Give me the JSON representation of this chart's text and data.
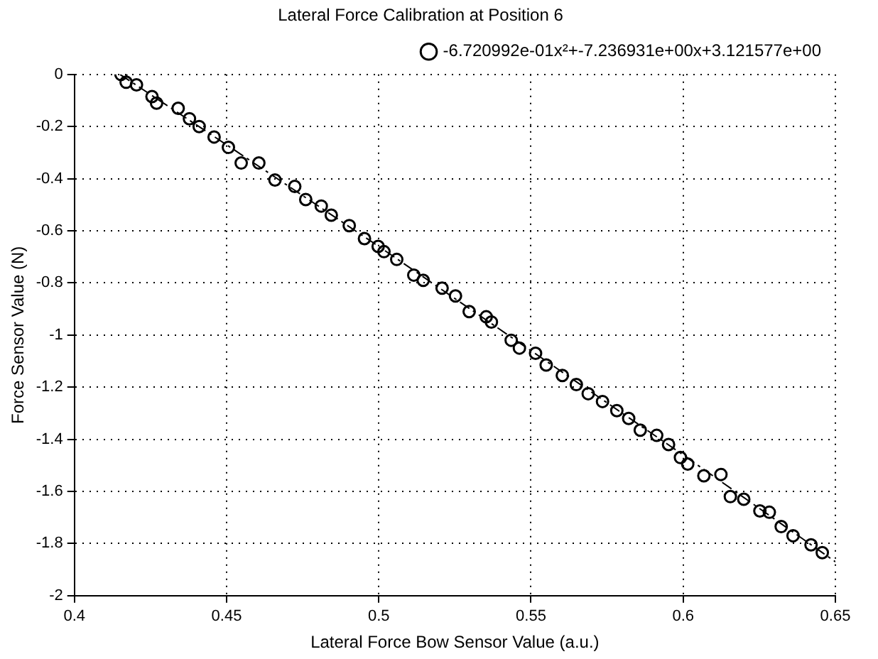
{
  "chart_data": {
    "type": "scatter",
    "title": "Lateral Force Calibration at Position 6",
    "xlabel": "Lateral Force Bow Sensor Value (a.u.)",
    "ylabel": "Force Sensor Value (N)",
    "xlim": [
      0.4,
      0.65
    ],
    "xticks": [
      0.4,
      0.45,
      0.5,
      0.55,
      0.6,
      0.65
    ],
    "ylim": [
      -2,
      0
    ],
    "yticks": [
      -2,
      -1.8,
      -1.6,
      -1.4,
      -1.2,
      -1,
      -0.8,
      -0.6,
      -0.4,
      -0.2,
      0
    ],
    "grid": true,
    "legend": "top right",
    "series": [
      {
        "name": "-6.720992e-01x²+-7.236931e+00x+3.121577e+00",
        "marker": "circle",
        "color": "#000000",
        "x": [
          0.4153,
          0.417,
          0.4204,
          0.4255,
          0.427,
          0.4341,
          0.4378,
          0.441,
          0.4459,
          0.4506,
          0.4548,
          0.4606,
          0.4659,
          0.4724,
          0.476,
          0.4811,
          0.4844,
          0.4903,
          0.4953,
          0.4998,
          0.5017,
          0.5059,
          0.5115,
          0.5146,
          0.5208,
          0.5252,
          0.5297,
          0.5353,
          0.537,
          0.5435,
          0.5462,
          0.5515,
          0.555,
          0.5603,
          0.5649,
          0.5688,
          0.5735,
          0.5782,
          0.5821,
          0.5859,
          0.5913,
          0.5952,
          0.5991,
          0.6015,
          0.6068,
          0.6124,
          0.6155,
          0.6199,
          0.6252,
          0.6283,
          0.6322,
          0.6361,
          0.642,
          0.6457
        ],
        "values": [
          0,
          -0.03,
          -0.04,
          -0.085,
          -0.11,
          -0.13,
          -0.17,
          -0.2,
          -0.24,
          -0.28,
          -0.34,
          -0.34,
          -0.405,
          -0.43,
          -0.48,
          -0.505,
          -0.54,
          -0.58,
          -0.63,
          -0.66,
          -0.68,
          -0.71,
          -0.77,
          -0.79,
          -0.82,
          -0.85,
          -0.91,
          -0.93,
          -0.95,
          -1.02,
          -1.05,
          -1.07,
          -1.115,
          -1.155,
          -1.19,
          -1.225,
          -1.255,
          -1.29,
          -1.32,
          -1.365,
          -1.385,
          -1.42,
          -1.47,
          -1.495,
          -1.54,
          -1.535,
          -1.62,
          -1.63,
          -1.675,
          -1.68,
          -1.735,
          -1.77,
          -1.805,
          -1.835
        ]
      },
      {
        "type": "line",
        "marker": "none",
        "line_style": "dashed",
        "color": "#000000",
        "x": [
          0.415,
          0.45,
          0.5,
          0.55,
          0.6,
          0.65
        ],
        "values": [
          0,
          -0.27,
          -0.66,
          -1.06,
          -1.46,
          -1.87
        ]
      }
    ]
  }
}
